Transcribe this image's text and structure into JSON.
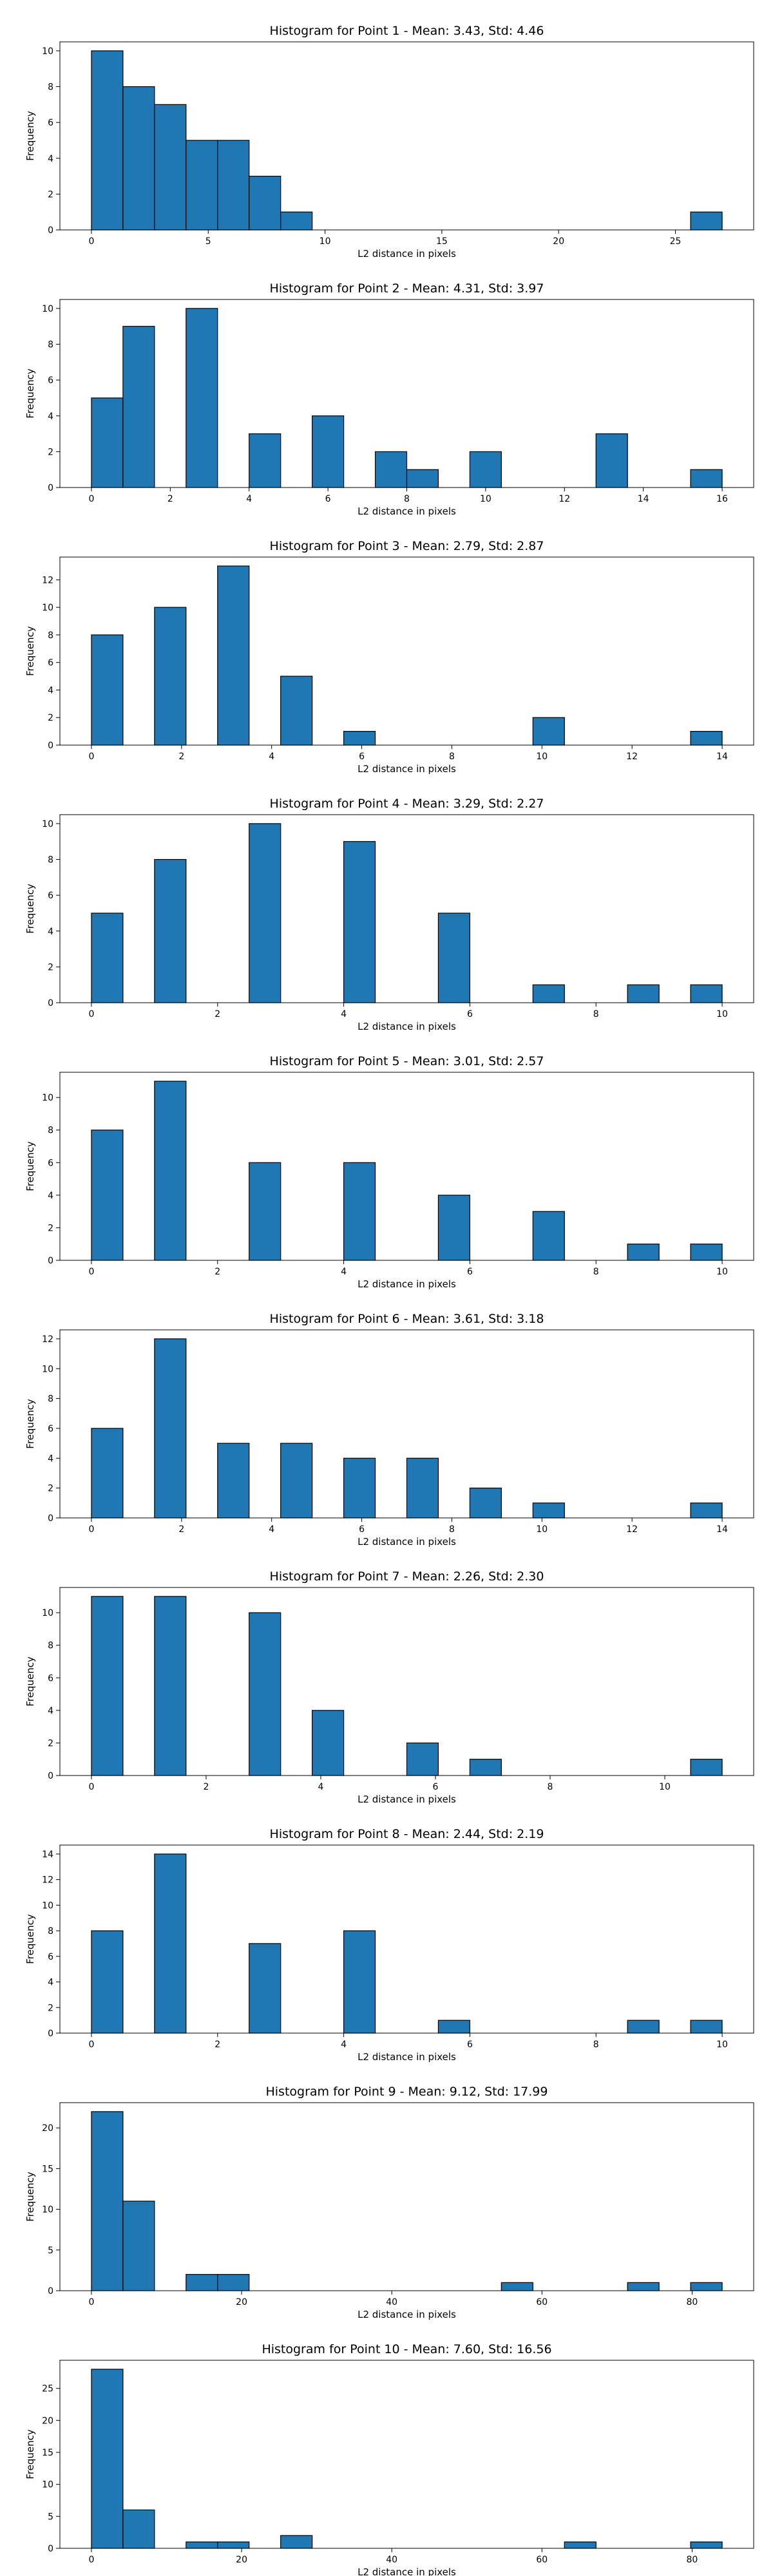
{
  "style": {
    "bar_color": "#1f77b4",
    "edge_color": "#000000"
  },
  "chart_data": [
    {
      "type": "bar",
      "title": "Histogram for Point 1 - Mean: 3.43, Std: 4.46",
      "xlabel": "L2 distance in pixels",
      "ylabel": "Frequency",
      "xlim": [
        -1.35,
        28.35
      ],
      "ylim": [
        0,
        10.5
      ],
      "xticks": [
        0,
        5,
        10,
        15,
        20,
        25
      ],
      "yticks": [
        0,
        2,
        4,
        6,
        8,
        10
      ],
      "bins": [
        {
          "x0": 0.0,
          "x1": 1.35,
          "value": 10
        },
        {
          "x0": 1.35,
          "x1": 2.7,
          "value": 8
        },
        {
          "x0": 2.7,
          "x1": 4.05,
          "value": 7
        },
        {
          "x0": 4.05,
          "x1": 5.4,
          "value": 5
        },
        {
          "x0": 5.4,
          "x1": 6.75,
          "value": 5
        },
        {
          "x0": 6.75,
          "x1": 8.1,
          "value": 3
        },
        {
          "x0": 8.1,
          "x1": 9.45,
          "value": 1
        },
        {
          "x0": 25.65,
          "x1": 27.0,
          "value": 1
        }
      ]
    },
    {
      "type": "bar",
      "title": "Histogram for Point 2 - Mean: 4.31, Std: 3.97",
      "xlabel": "L2 distance in pixels",
      "ylabel": "Frequency",
      "xlim": [
        -0.8,
        16.8
      ],
      "ylim": [
        0,
        10.5
      ],
      "xticks": [
        0,
        2,
        4,
        6,
        8,
        10,
        12,
        14,
        16
      ],
      "yticks": [
        0,
        2,
        4,
        6,
        8,
        10
      ],
      "bins": [
        {
          "x0": 0.0,
          "x1": 0.8,
          "value": 5
        },
        {
          "x0": 0.8,
          "x1": 1.6,
          "value": 9
        },
        {
          "x0": 2.4,
          "x1": 3.2,
          "value": 10
        },
        {
          "x0": 4.0,
          "x1": 4.8,
          "value": 3
        },
        {
          "x0": 5.6,
          "x1": 6.4,
          "value": 4
        },
        {
          "x0": 7.2,
          "x1": 8.0,
          "value": 2
        },
        {
          "x0": 8.0,
          "x1": 8.8,
          "value": 1
        },
        {
          "x0": 9.6,
          "x1": 10.4,
          "value": 2
        },
        {
          "x0": 12.8,
          "x1": 13.6,
          "value": 3
        },
        {
          "x0": 15.2,
          "x1": 16.0,
          "value": 1
        }
      ]
    },
    {
      "type": "bar",
      "title": "Histogram for Point 3 - Mean: 2.79, Std: 2.87",
      "xlabel": "L2 distance in pixels",
      "ylabel": "Frequency",
      "xlim": [
        -0.7,
        14.7
      ],
      "ylim": [
        0,
        13.65
      ],
      "xticks": [
        0,
        2,
        4,
        6,
        8,
        10,
        12,
        14
      ],
      "yticks": [
        0,
        2,
        4,
        6,
        8,
        10,
        12
      ],
      "bins": [
        {
          "x0": 0.0,
          "x1": 0.7,
          "value": 8
        },
        {
          "x0": 1.4,
          "x1": 2.1,
          "value": 10
        },
        {
          "x0": 2.8,
          "x1": 3.5,
          "value": 13
        },
        {
          "x0": 4.2,
          "x1": 4.9,
          "value": 5
        },
        {
          "x0": 5.6,
          "x1": 6.3,
          "value": 1
        },
        {
          "x0": 9.8,
          "x1": 10.5,
          "value": 2
        },
        {
          "x0": 13.3,
          "x1": 14.0,
          "value": 1
        }
      ]
    },
    {
      "type": "bar",
      "title": "Histogram for Point 4 - Mean: 3.29, Std: 2.27",
      "xlabel": "L2 distance in pixels",
      "ylabel": "Frequency",
      "xlim": [
        -0.5,
        10.5
      ],
      "ylim": [
        0,
        10.5
      ],
      "xticks": [
        0,
        2,
        4,
        6,
        8,
        10
      ],
      "yticks": [
        0,
        2,
        4,
        6,
        8,
        10
      ],
      "bins": [
        {
          "x0": 0.0,
          "x1": 0.5,
          "value": 5
        },
        {
          "x0": 1.0,
          "x1": 1.5,
          "value": 8
        },
        {
          "x0": 2.5,
          "x1": 3.0,
          "value": 10
        },
        {
          "x0": 4.0,
          "x1": 4.5,
          "value": 9
        },
        {
          "x0": 5.5,
          "x1": 6.0,
          "value": 5
        },
        {
          "x0": 7.0,
          "x1": 7.5,
          "value": 1
        },
        {
          "x0": 8.5,
          "x1": 9.0,
          "value": 1
        },
        {
          "x0": 9.5,
          "x1": 10.0,
          "value": 1
        }
      ]
    },
    {
      "type": "bar",
      "title": "Histogram for Point 5 - Mean: 3.01, Std: 2.57",
      "xlabel": "L2 distance in pixels",
      "ylabel": "Frequency",
      "xlim": [
        -0.5,
        10.5
      ],
      "ylim": [
        0,
        11.55
      ],
      "xticks": [
        0,
        2,
        4,
        6,
        8,
        10
      ],
      "yticks": [
        0,
        2,
        4,
        6,
        8,
        10
      ],
      "bins": [
        {
          "x0": 0.0,
          "x1": 0.5,
          "value": 8
        },
        {
          "x0": 1.0,
          "x1": 1.5,
          "value": 11
        },
        {
          "x0": 2.5,
          "x1": 3.0,
          "value": 6
        },
        {
          "x0": 4.0,
          "x1": 4.5,
          "value": 6
        },
        {
          "x0": 5.5,
          "x1": 6.0,
          "value": 4
        },
        {
          "x0": 7.0,
          "x1": 7.5,
          "value": 3
        },
        {
          "x0": 8.5,
          "x1": 9.0,
          "value": 1
        },
        {
          "x0": 9.5,
          "x1": 10.0,
          "value": 1
        }
      ]
    },
    {
      "type": "bar",
      "title": "Histogram for Point 6 - Mean: 3.61, Std: 3.18",
      "xlabel": "L2 distance in pixels",
      "ylabel": "Frequency",
      "xlim": [
        -0.7,
        14.7
      ],
      "ylim": [
        0,
        12.6
      ],
      "xticks": [
        0,
        2,
        4,
        6,
        8,
        10,
        12,
        14
      ],
      "yticks": [
        0,
        2,
        4,
        6,
        8,
        10,
        12
      ],
      "bins": [
        {
          "x0": 0.0,
          "x1": 0.7,
          "value": 6
        },
        {
          "x0": 1.4,
          "x1": 2.1,
          "value": 12
        },
        {
          "x0": 2.8,
          "x1": 3.5,
          "value": 5
        },
        {
          "x0": 4.2,
          "x1": 4.9,
          "value": 5
        },
        {
          "x0": 5.6,
          "x1": 6.3,
          "value": 4
        },
        {
          "x0": 7.0,
          "x1": 7.7,
          "value": 4
        },
        {
          "x0": 8.4,
          "x1": 9.1,
          "value": 2
        },
        {
          "x0": 9.8,
          "x1": 10.5,
          "value": 1
        },
        {
          "x0": 13.3,
          "x1": 14.0,
          "value": 1
        }
      ]
    },
    {
      "type": "bar",
      "title": "Histogram for Point 7 - Mean: 2.26, Std: 2.30",
      "xlabel": "L2 distance in pixels",
      "ylabel": "Frequency",
      "xlim": [
        -0.55,
        11.55
      ],
      "ylim": [
        0,
        11.55
      ],
      "xticks": [
        0,
        2,
        4,
        6,
        8,
        10
      ],
      "yticks": [
        0,
        2,
        4,
        6,
        8,
        10
      ],
      "bins": [
        {
          "x0": 0.0,
          "x1": 0.55,
          "value": 11
        },
        {
          "x0": 1.1,
          "x1": 1.65,
          "value": 11
        },
        {
          "x0": 2.75,
          "x1": 3.3,
          "value": 10
        },
        {
          "x0": 3.85,
          "x1": 4.4,
          "value": 4
        },
        {
          "x0": 5.5,
          "x1": 6.05,
          "value": 2
        },
        {
          "x0": 6.6,
          "x1": 7.15,
          "value": 1
        },
        {
          "x0": 10.45,
          "x1": 11.0,
          "value": 1
        }
      ]
    },
    {
      "type": "bar",
      "title": "Histogram for Point 8 - Mean: 2.44, Std: 2.19",
      "xlabel": "L2 distance in pixels",
      "ylabel": "Frequency",
      "xlim": [
        -0.5,
        10.5
      ],
      "ylim": [
        0,
        14.7
      ],
      "xticks": [
        0,
        2,
        4,
        6,
        8,
        10
      ],
      "yticks": [
        0,
        2,
        4,
        6,
        8,
        10,
        12,
        14
      ],
      "bins": [
        {
          "x0": 0.0,
          "x1": 0.5,
          "value": 8
        },
        {
          "x0": 1.0,
          "x1": 1.5,
          "value": 14
        },
        {
          "x0": 2.5,
          "x1": 3.0,
          "value": 7
        },
        {
          "x0": 4.0,
          "x1": 4.5,
          "value": 8
        },
        {
          "x0": 5.5,
          "x1": 6.0,
          "value": 1
        },
        {
          "x0": 8.5,
          "x1": 9.0,
          "value": 1
        },
        {
          "x0": 9.5,
          "x1": 10.0,
          "value": 1
        }
      ]
    },
    {
      "type": "bar",
      "title": "Histogram for Point 9 - Mean: 9.12, Std: 17.99",
      "xlabel": "L2 distance in pixels",
      "ylabel": "Frequency",
      "xlim": [
        -4.2,
        88.2
      ],
      "ylim": [
        0,
        23.1
      ],
      "xticks": [
        0,
        20,
        40,
        60,
        80
      ],
      "yticks": [
        0,
        5,
        10,
        15,
        20
      ],
      "bins": [
        {
          "x0": 0.0,
          "x1": 4.2,
          "value": 22
        },
        {
          "x0": 4.2,
          "x1": 8.4,
          "value": 11
        },
        {
          "x0": 12.6,
          "x1": 16.8,
          "value": 2
        },
        {
          "x0": 16.8,
          "x1": 21.0,
          "value": 2
        },
        {
          "x0": 54.6,
          "x1": 58.8,
          "value": 1
        },
        {
          "x0": 71.4,
          "x1": 75.6,
          "value": 1
        },
        {
          "x0": 79.8,
          "x1": 84.0,
          "value": 1
        }
      ]
    },
    {
      "type": "bar",
      "title": "Histogram for Point 10 - Mean: 7.60, Std: 16.56",
      "xlabel": "L2 distance in pixels",
      "ylabel": "Frequency",
      "xlim": [
        -4.2,
        88.2
      ],
      "ylim": [
        0,
        29.4
      ],
      "xticks": [
        0,
        20,
        40,
        60,
        80
      ],
      "yticks": [
        0,
        5,
        10,
        15,
        20,
        25
      ],
      "bins": [
        {
          "x0": 0.0,
          "x1": 4.2,
          "value": 28
        },
        {
          "x0": 4.2,
          "x1": 8.4,
          "value": 6
        },
        {
          "x0": 12.6,
          "x1": 16.8,
          "value": 1
        },
        {
          "x0": 16.8,
          "x1": 21.0,
          "value": 1
        },
        {
          "x0": 25.2,
          "x1": 29.4,
          "value": 2
        },
        {
          "x0": 63.0,
          "x1": 67.2,
          "value": 1
        },
        {
          "x0": 79.8,
          "x1": 84.0,
          "value": 1
        }
      ]
    }
  ]
}
